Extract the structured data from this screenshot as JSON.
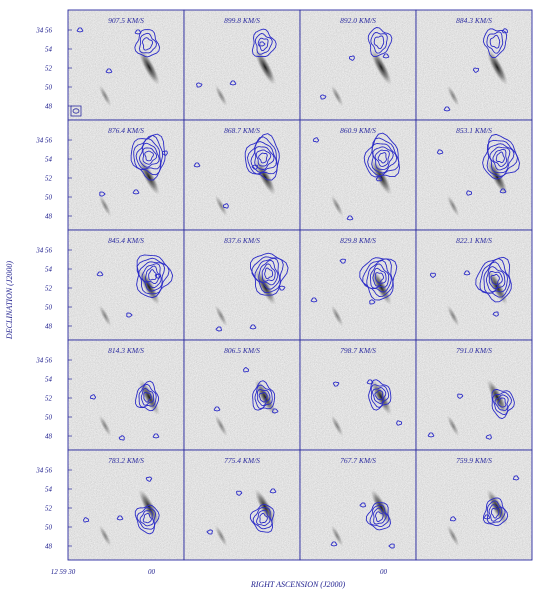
{
  "chart_data": {
    "type": "channel_map_grid",
    "rows": 5,
    "cols": 4,
    "velocity_unit": "KM/S",
    "channels": [
      "907.5 KM/S",
      "899.8 KM/S",
      "892.0 KM/S",
      "884.3 KM/S",
      "876.4 KM/S",
      "868.7 KM/S",
      "860.9 KM/S",
      "853.1 KM/S",
      "845.4 KM/S",
      "837.6 KM/S",
      "829.8 KM/S",
      "822.1 KM/S",
      "814.3 KM/S",
      "806.5 KM/S",
      "798.7 KM/S",
      "791.0 KM/S",
      "783.2 KM/S",
      "775.4 KM/S",
      "767.7 KM/S",
      "759.9 KM/S"
    ],
    "xlabel": "RIGHT ASCENSION (J2000)",
    "ylabel": "DECLINATION (J2000)",
    "y_ticks": [
      "34 56",
      "54",
      "52",
      "50",
      "48"
    ],
    "x_ticks": [
      "12 59 30",
      "00",
      "00"
    ],
    "source_offsets": [
      [
        0.0,
        0.55
      ],
      [
        0.0,
        0.55
      ],
      [
        0.0,
        0.6
      ],
      [
        0.0,
        0.6
      ],
      [
        0.05,
        0.5
      ],
      [
        0.0,
        0.45
      ],
      [
        0.1,
        0.45
      ],
      [
        0.15,
        0.45
      ],
      [
        0.15,
        0.25
      ],
      [
        0.15,
        0.3
      ],
      [
        0.0,
        0.2
      ],
      [
        0.0,
        0.15
      ],
      [
        0.0,
        -0.05
      ],
      [
        0.0,
        -0.05
      ],
      [
        0.0,
        0.0
      ],
      [
        0.2,
        -0.2
      ],
      [
        0.0,
        -0.35
      ],
      [
        0.0,
        -0.35
      ],
      [
        0.0,
        -0.3
      ],
      [
        0.0,
        -0.2
      ]
    ],
    "beam_shown_in_panel": 1
  }
}
